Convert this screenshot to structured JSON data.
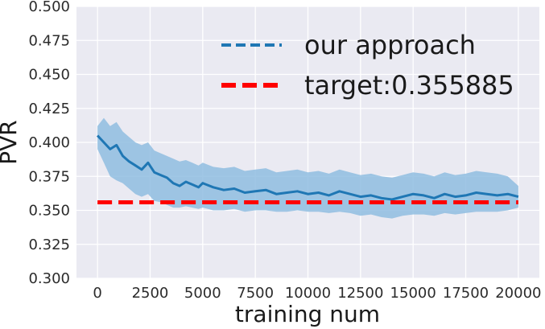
{
  "chart_data": {
    "type": "line",
    "xlabel": "training num",
    "ylabel": "PVR",
    "xlim": [
      -1000,
      21000
    ],
    "ylim": [
      0.3,
      0.5
    ],
    "x_ticks": [
      0,
      2500,
      5000,
      7500,
      10000,
      12500,
      15000,
      17500,
      20000
    ],
    "x_tick_labels": [
      "0",
      "2500",
      "5000",
      "7500",
      "10000",
      "12500",
      "15000",
      "17500",
      "20000"
    ],
    "y_ticks": [
      0.3,
      0.325,
      0.35,
      0.375,
      0.4,
      0.425,
      0.45,
      0.475,
      0.5
    ],
    "y_tick_labels": [
      "0.300",
      "0.325",
      "0.350",
      "0.375",
      "0.400",
      "0.425",
      "0.450",
      "0.475",
      "0.500"
    ],
    "grid": true,
    "legend_position": "top-right",
    "colors": {
      "background": "#eaeaf2",
      "grid": "#ffffff",
      "series": "#1f77b4",
      "band": "#8fbde0",
      "target": "#ff0000"
    },
    "series": [
      {
        "name": "our approach",
        "style": "dashed",
        "x": [
          0,
          300,
          600,
          900,
          1200,
          1500,
          1800,
          2100,
          2400,
          2700,
          3000,
          3300,
          3600,
          3900,
          4200,
          4500,
          4800,
          5000,
          5500,
          6000,
          6500,
          7000,
          7500,
          8000,
          8500,
          9000,
          9500,
          10000,
          10500,
          11000,
          11500,
          12000,
          12500,
          13000,
          13500,
          14000,
          14500,
          15000,
          15500,
          16000,
          16500,
          17000,
          17500,
          18000,
          18500,
          19000,
          19500,
          20000
        ],
        "values": [
          0.405,
          0.4,
          0.395,
          0.398,
          0.39,
          0.386,
          0.383,
          0.38,
          0.385,
          0.378,
          0.376,
          0.374,
          0.37,
          0.368,
          0.371,
          0.369,
          0.367,
          0.37,
          0.367,
          0.365,
          0.366,
          0.363,
          0.364,
          0.365,
          0.362,
          0.363,
          0.364,
          0.362,
          0.363,
          0.361,
          0.364,
          0.362,
          0.36,
          0.361,
          0.359,
          0.358,
          0.36,
          0.362,
          0.361,
          0.359,
          0.362,
          0.36,
          0.361,
          0.363,
          0.362,
          0.361,
          0.362,
          0.36
        ],
        "band_lower": [
          0.395,
          0.385,
          0.375,
          0.372,
          0.37,
          0.366,
          0.362,
          0.36,
          0.362,
          0.357,
          0.356,
          0.354,
          0.352,
          0.352,
          0.353,
          0.352,
          0.351,
          0.352,
          0.35,
          0.35,
          0.351,
          0.349,
          0.35,
          0.35,
          0.349,
          0.349,
          0.35,
          0.349,
          0.349,
          0.348,
          0.349,
          0.348,
          0.346,
          0.347,
          0.345,
          0.344,
          0.346,
          0.347,
          0.347,
          0.346,
          0.348,
          0.347,
          0.348,
          0.349,
          0.349,
          0.349,
          0.35,
          0.352
        ],
        "band_upper": [
          0.412,
          0.418,
          0.412,
          0.415,
          0.408,
          0.404,
          0.4,
          0.398,
          0.4,
          0.394,
          0.392,
          0.39,
          0.388,
          0.386,
          0.387,
          0.385,
          0.383,
          0.385,
          0.382,
          0.381,
          0.382,
          0.379,
          0.38,
          0.381,
          0.378,
          0.379,
          0.38,
          0.378,
          0.379,
          0.377,
          0.38,
          0.378,
          0.376,
          0.377,
          0.375,
          0.374,
          0.376,
          0.378,
          0.377,
          0.375,
          0.378,
          0.376,
          0.377,
          0.379,
          0.378,
          0.377,
          0.375,
          0.368
        ]
      },
      {
        "name": "target:0.355885",
        "style": "dashed",
        "x": [
          0,
          20000
        ],
        "values": [
          0.355885,
          0.355885
        ]
      }
    ]
  }
}
